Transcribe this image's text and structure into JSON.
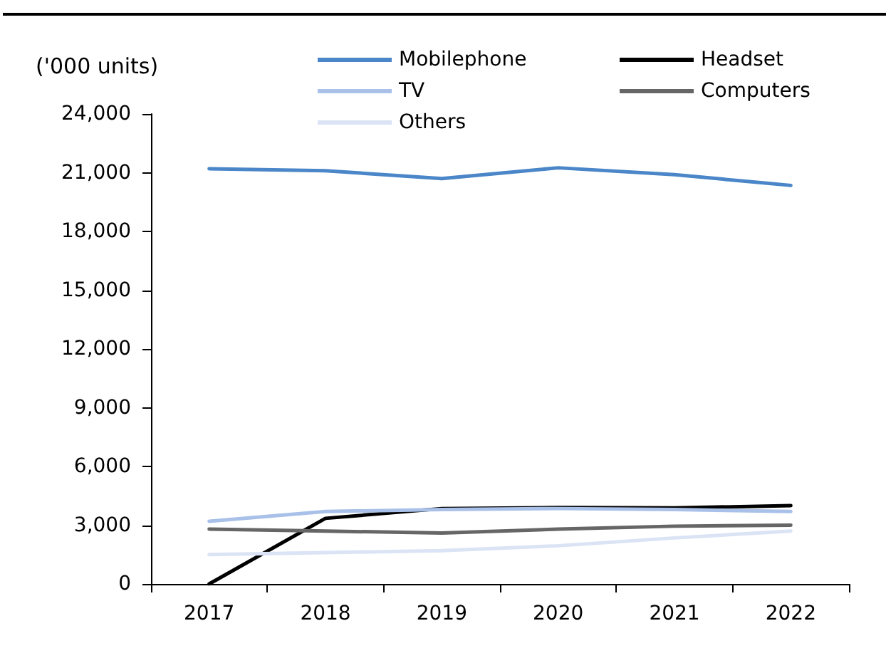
{
  "chart_data": {
    "type": "line",
    "ylabel": "('000 units)",
    "categories": [
      "2017",
      "2018",
      "2019",
      "2020",
      "2021",
      "2022"
    ],
    "series": [
      {
        "name": "Mobilephone",
        "color": "#4a86c8",
        "values": [
          21200,
          21100,
          20700,
          21250,
          20900,
          20350
        ]
      },
      {
        "name": "Headset",
        "color": "#000000",
        "values": [
          0,
          3350,
          3850,
          3900,
          3880,
          4000
        ]
      },
      {
        "name": "TV",
        "color": "#a9c1e8",
        "values": [
          3200,
          3700,
          3800,
          3850,
          3800,
          3700
        ]
      },
      {
        "name": "Computers",
        "color": "#666666",
        "values": [
          2800,
          2700,
          2600,
          2800,
          2950,
          3000
        ]
      },
      {
        "name": "Others",
        "color": "#dbe4f5",
        "values": [
          1500,
          1600,
          1700,
          1950,
          2350,
          2700
        ]
      }
    ],
    "ylim": [
      0,
      24000
    ],
    "yticks": [
      0,
      {
        "value": 3000,
        "label": "3,000"
      },
      {
        "value": 6000,
        "label": "6,000"
      },
      {
        "value": 9000,
        "label": "9,000"
      },
      {
        "value": 12000,
        "label": "12,000"
      },
      {
        "value": 15000,
        "label": "15,000"
      },
      {
        "value": 18000,
        "label": "18,000"
      },
      {
        "value": 21000,
        "label": "21,000"
      },
      {
        "value": 24000,
        "label": "24,000"
      }
    ],
    "grid": false,
    "legend": "top",
    "marker": "none",
    "line_style": "solid"
  }
}
